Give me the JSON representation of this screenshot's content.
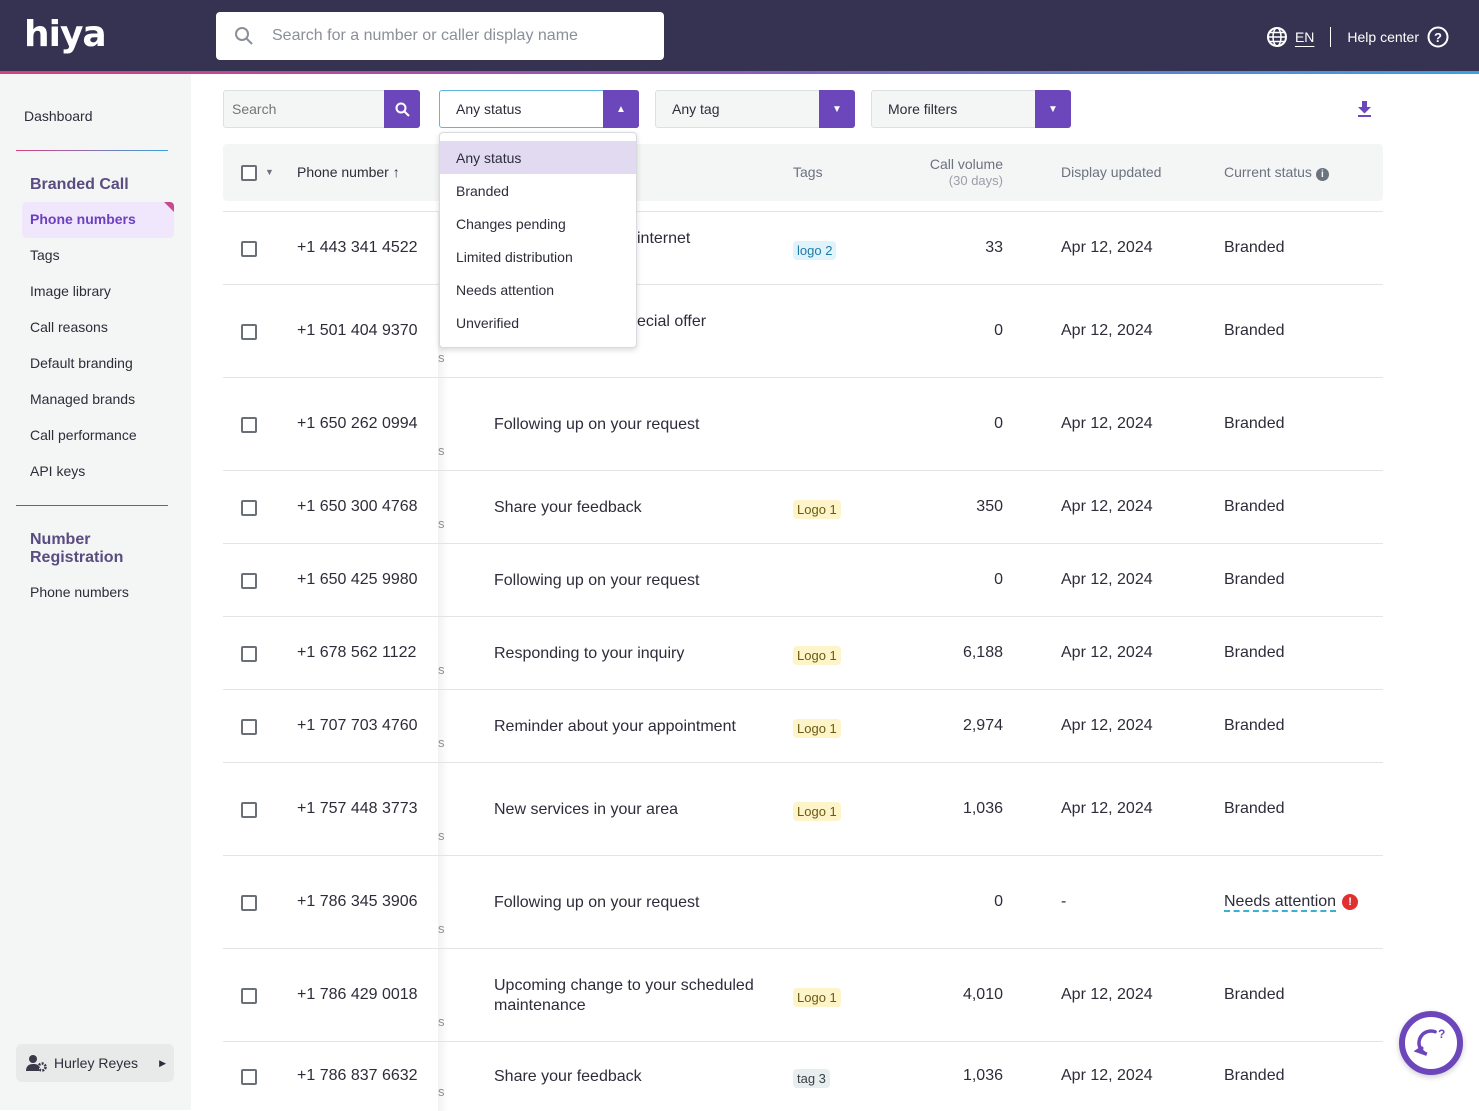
{
  "header": {
    "logo": "hiya",
    "search_placeholder": "Search for a number or caller display name",
    "lang": "EN",
    "help": "Help center"
  },
  "sidebar": {
    "dashboard": "Dashboard",
    "section1": "Branded Call",
    "active": "Phone numbers",
    "items": [
      "Tags",
      "Image library",
      "Call reasons",
      "Default branding",
      "Managed brands",
      "Call performance",
      "API keys"
    ],
    "section2": "Number Registration",
    "items2": [
      "Phone numbers"
    ],
    "user": "Hurley Reyes"
  },
  "filters": {
    "search_placeholder": "Search",
    "status": "Any status",
    "tag": "Any tag",
    "more": "More filters"
  },
  "status_options": [
    "Any status",
    "Branded",
    "Changes pending",
    "Limited distribution",
    "Needs attention",
    "Unverified"
  ],
  "columns": {
    "phone": "Phone number",
    "tags": "Tags",
    "call_volume": "Call volume",
    "call_volume_sub": "(30 days)",
    "updated": "Display updated",
    "status": "Current status"
  },
  "rows": [
    {
      "phone": "+1 443 341 4522",
      "s": "",
      "display": "internet",
      "tag": "logo 2",
      "tagType": "blue",
      "volume": "33",
      "updated": "Apr 12, 2024",
      "status": "Branded"
    },
    {
      "phone": "+1 501 404 9370",
      "s": "s",
      "display": "ecial offer",
      "tag": "",
      "tagType": "",
      "volume": "0",
      "updated": "Apr 12, 2024",
      "status": "Branded"
    },
    {
      "phone": "+1 650 262 0994",
      "s": "s",
      "display": "Following up on your request",
      "tag": "",
      "tagType": "",
      "volume": "0",
      "updated": "Apr 12, 2024",
      "status": "Branded"
    },
    {
      "phone": "+1 650 300 4768",
      "s": "s",
      "display": "Share your feedback",
      "tag": "Logo 1",
      "tagType": "yellow",
      "volume": "350",
      "updated": "Apr 12, 2024",
      "status": "Branded"
    },
    {
      "phone": "+1 650 425 9980",
      "s": "",
      "display": "Following up on your request",
      "tag": "",
      "tagType": "",
      "volume": "0",
      "updated": "Apr 12, 2024",
      "status": "Branded"
    },
    {
      "phone": "+1 678 562 1122",
      "s": "s",
      "display": "Responding to your inquiry",
      "tag": "Logo 1",
      "tagType": "yellow",
      "volume": "6,188",
      "updated": "Apr 12, 2024",
      "status": "Branded"
    },
    {
      "phone": "+1 707 703 4760",
      "s": "s",
      "display": "Reminder about your appointment",
      "tag": "Logo 1",
      "tagType": "yellow",
      "volume": "2,974",
      "updated": "Apr 12, 2024",
      "status": "Branded"
    },
    {
      "phone": "+1 757 448 3773",
      "s": "s",
      "display": "New services in your area",
      "tag": "Logo 1",
      "tagType": "yellow",
      "volume": "1,036",
      "updated": "Apr 12, 2024",
      "status": "Branded"
    },
    {
      "phone": "+1 786 345 3906",
      "s": "s",
      "display": "Following up on your request",
      "tag": "",
      "tagType": "",
      "volume": "0",
      "updated": "-",
      "status": "Needs attention"
    },
    {
      "phone": "+1 786 429 0018",
      "s": "s",
      "display": "Upcoming change to your scheduled maintenance",
      "tag": "Logo 1",
      "tagType": "yellow",
      "volume": "4,010",
      "updated": "Apr 12, 2024",
      "status": "Branded"
    },
    {
      "phone": "+1 786 837 6632",
      "s": "s",
      "display": "Share your feedback",
      "tag": "tag 3",
      "tagType": "gray",
      "volume": "1,036",
      "updated": "Apr 12, 2024",
      "status": "Branded"
    }
  ],
  "colors": {
    "accent": "#6c47bb",
    "topbar": "#353351",
    "alert": "#e03131"
  }
}
